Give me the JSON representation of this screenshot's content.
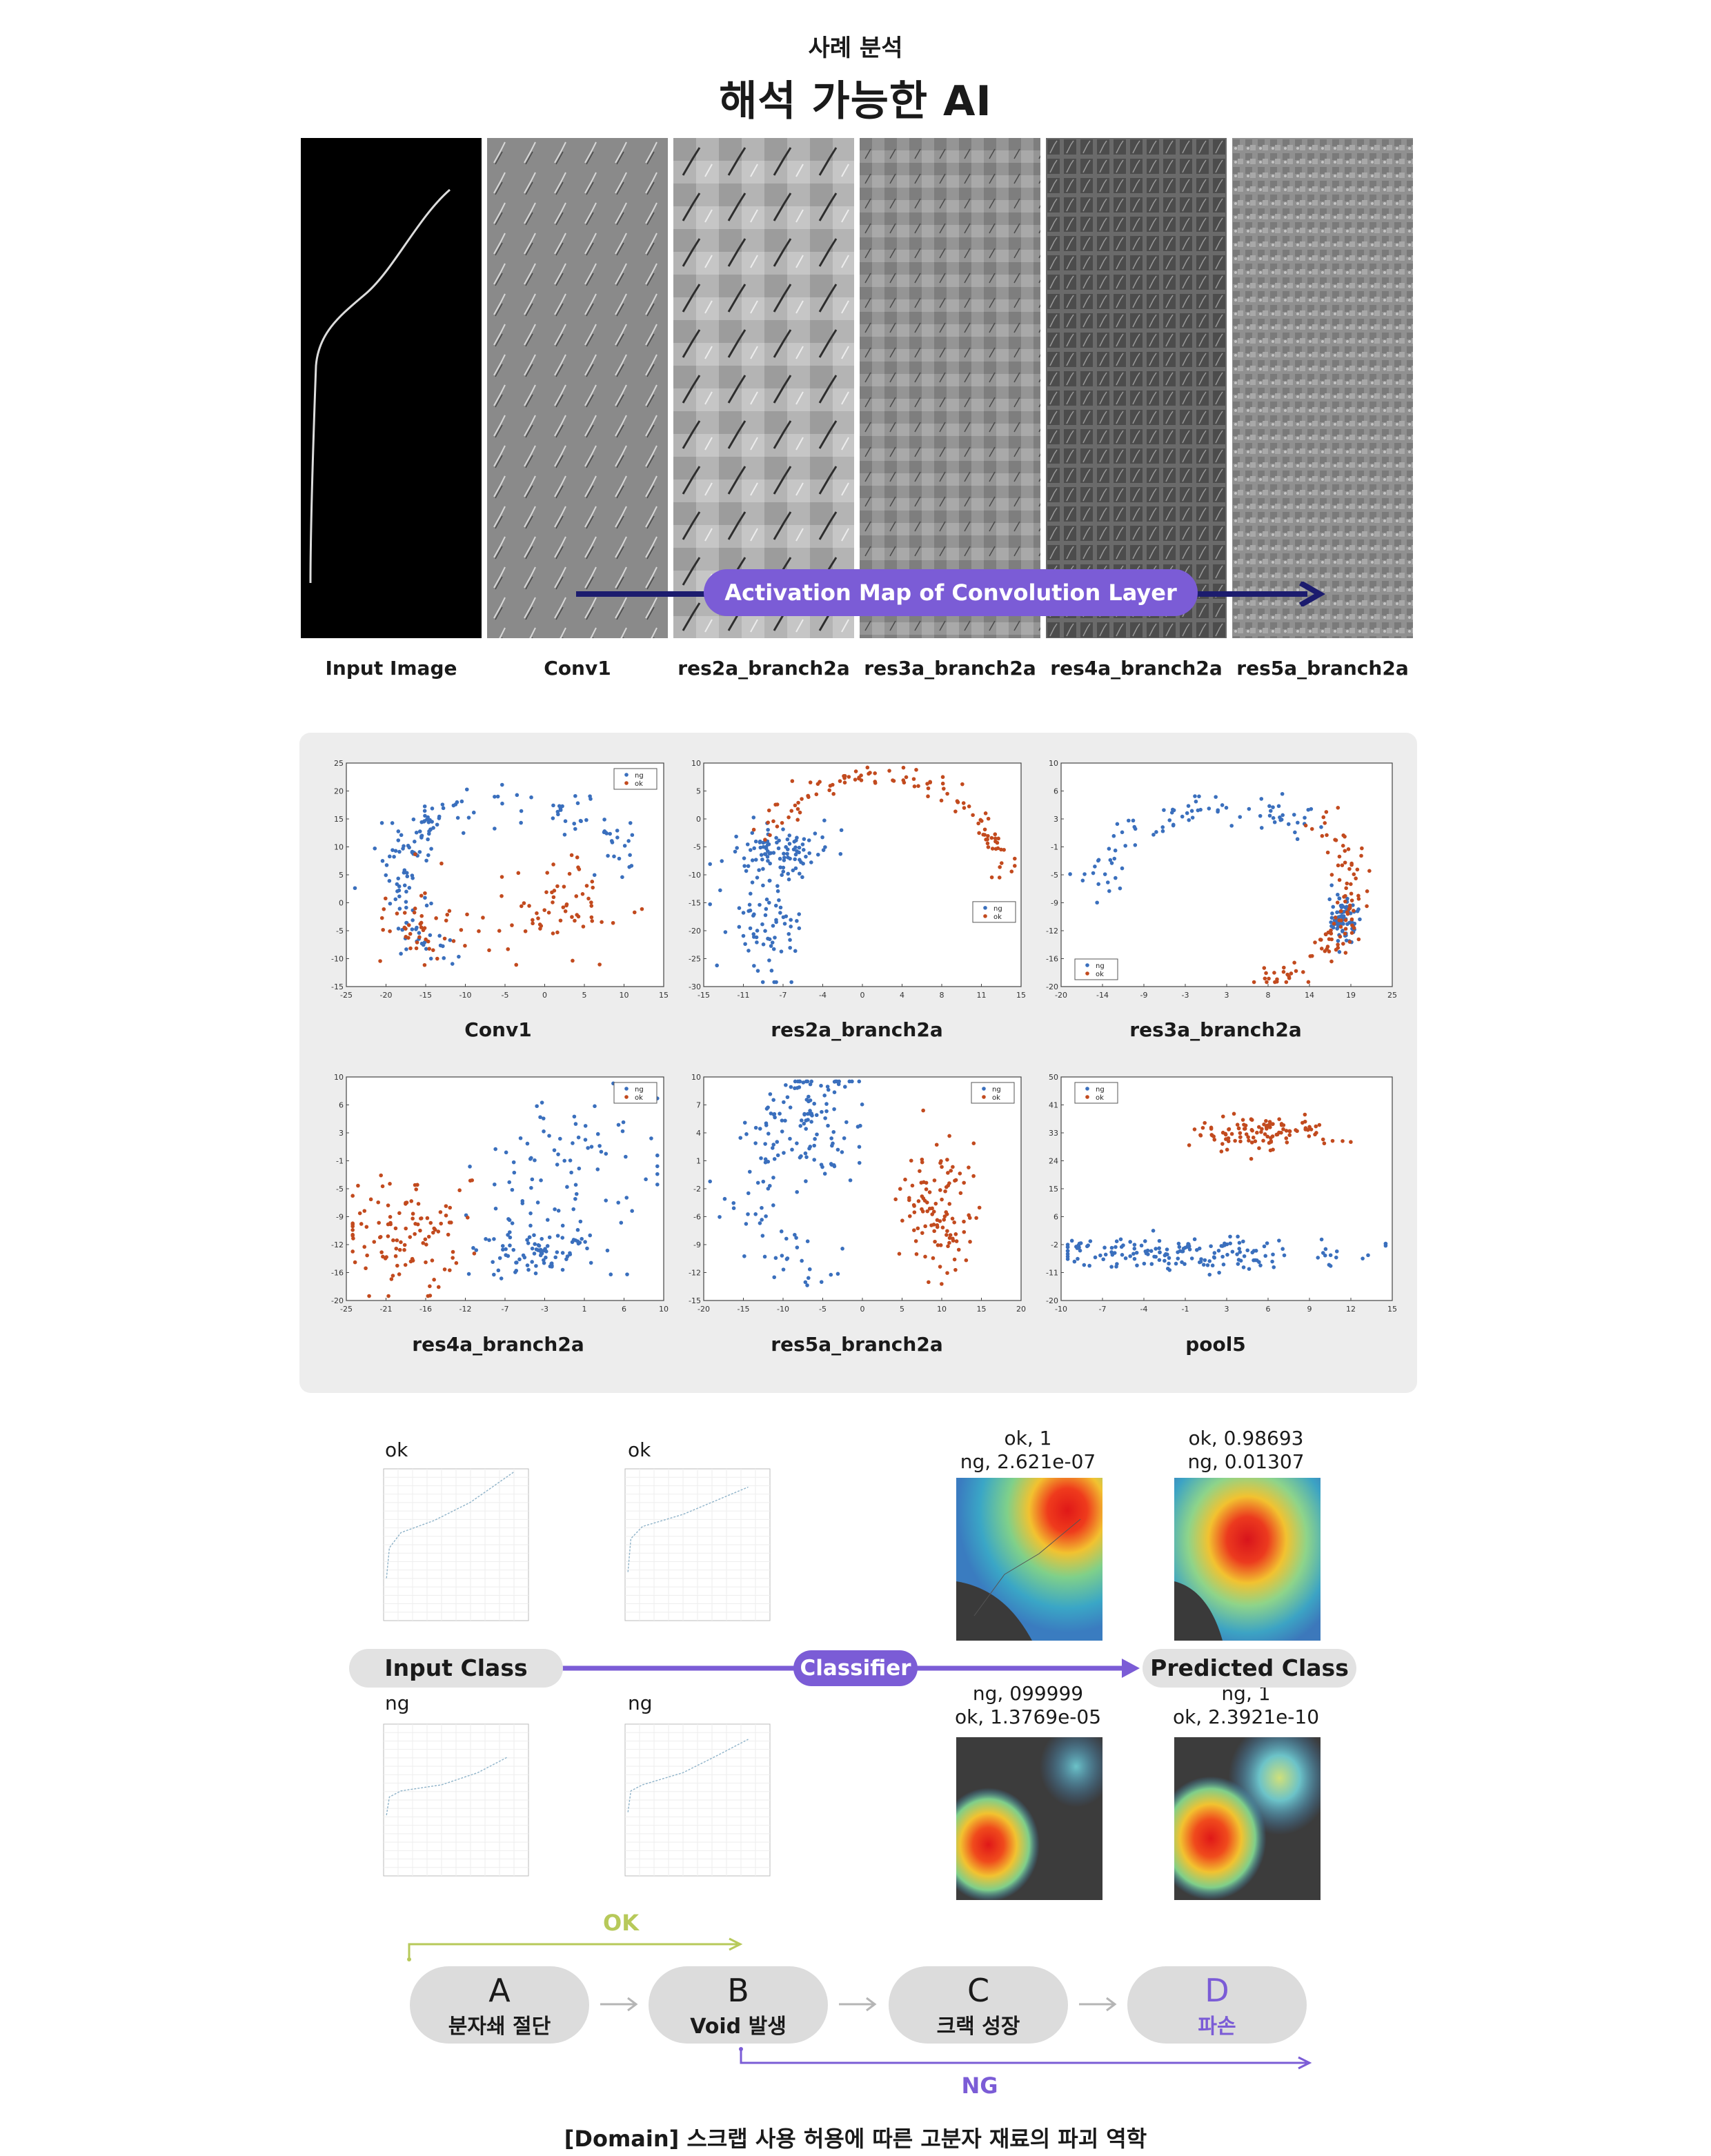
{
  "header": {
    "subtitle": "사례 분석",
    "title": "해석 가능한 AI"
  },
  "feature_maps": {
    "labels": [
      "Input Image",
      "Conv1",
      "res2a_branch2a",
      "res3a_branch2a",
      "res4a_branch2a",
      "res5a_branch2a"
    ],
    "activation_label": "Activation Map of Convolution Layer"
  },
  "tsne": {
    "panels": [
      {
        "label": "Conv1",
        "legend": [
          "ng",
          "ok"
        ],
        "xlim": [
          -25,
          15
        ],
        "ylim": [
          -15,
          25
        ]
      },
      {
        "label": "res2a_branch2a",
        "legend": [
          "ng",
          "ok"
        ],
        "xlim": [
          -15,
          15
        ],
        "ylim": [
          -30,
          10
        ]
      },
      {
        "label": "res3a_branch2a",
        "legend": [
          "ng",
          "ok"
        ],
        "xlim": [
          -20,
          25
        ],
        "ylim": [
          -20,
          10
        ]
      },
      {
        "label": "res4a_branch2a",
        "legend": [
          "ng",
          "ok"
        ],
        "xlim": [
          -25,
          10
        ],
        "ylim": [
          -20,
          10
        ]
      },
      {
        "label": "res5a_branch2a",
        "legend": [
          "ng",
          "ok"
        ],
        "xlim": [
          -20,
          20
        ],
        "ylim": [
          -15,
          10
        ]
      },
      {
        "label": "pool5",
        "legend": [
          "ng",
          "ok"
        ],
        "xlim": [
          -10,
          15
        ],
        "ylim": [
          -20,
          50
        ]
      }
    ],
    "colors": {
      "ng": "#3a6fbd",
      "ok": "#c24a1e"
    }
  },
  "classification": {
    "input_tags": [
      "ok",
      "ok",
      "ng",
      "ng"
    ],
    "input_class": "Input Class",
    "classifier": "Classifier",
    "predicted_class": "Predicted Class",
    "predictions": [
      {
        "line1": "ok, 1",
        "line2": "ng, 2.621e-07"
      },
      {
        "line1": "ok, 0.98693",
        "line2": "ng, 0.01307"
      },
      {
        "line1": "ng, 099999",
        "line2": "ok, 1.3769e-05"
      },
      {
        "line1": "ng, 1",
        "line2": "ok, 2.3921e-10"
      }
    ]
  },
  "process": {
    "ok_label": "OK",
    "ng_label": "NG",
    "stages": [
      {
        "letter": "A",
        "name": "분자쇄 절단"
      },
      {
        "letter": "B",
        "name": "Void 발생"
      },
      {
        "letter": "C",
        "name": "크랙 성장"
      },
      {
        "letter": "D",
        "name": "파손"
      }
    ],
    "colors": {
      "ok": "#b7c95a",
      "ng": "#7b5cd6",
      "arrow": "#b5b5b5"
    }
  },
  "caption": "[Domain] 스크랩 사용 허용에 따른 고분자 재료의 파괴 역학"
}
